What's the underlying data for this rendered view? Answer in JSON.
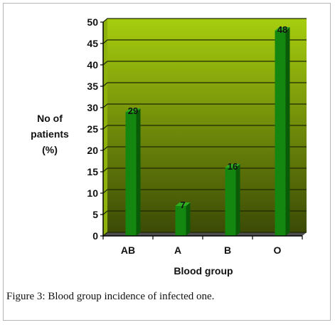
{
  "figure": {
    "caption_label": "Figure 3:",
    "caption_text": " Blood group incidence of infected one."
  },
  "chart_data": {
    "type": "bar",
    "categories": [
      "AB",
      "A",
      "B",
      "O"
    ],
    "values": [
      29,
      7,
      16,
      48
    ],
    "title": "",
    "xlabel": "Blood group",
    "ylabel": [
      "No of",
      "patients",
      "(%)"
    ],
    "ylim": [
      0,
      50
    ],
    "yticks": [
      0,
      5,
      10,
      15,
      20,
      25,
      30,
      35,
      40,
      45,
      50
    ],
    "grid": true,
    "style": "3d-bar",
    "colors": {
      "bar_front": "#13870f",
      "bar_side": "#0a5a08",
      "bar_top": "#2fae22",
      "plot_bg_top": "#a6ce0e",
      "plot_bg_bottom": "#3c4a06",
      "floor": "#4d4d4d"
    }
  }
}
